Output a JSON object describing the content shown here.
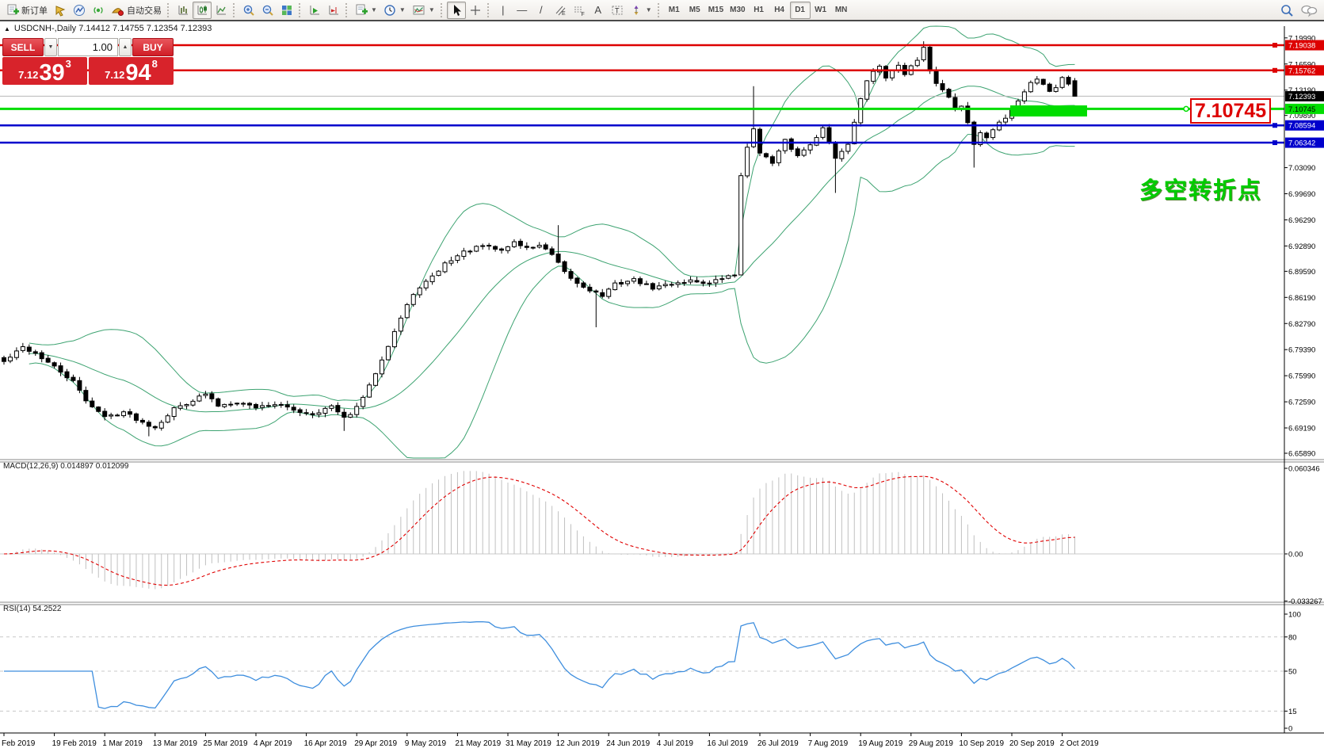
{
  "toolbar": {
    "new_order_label": "新订单",
    "auto_trading_label": "自动交易",
    "timeframes": [
      "M1",
      "M5",
      "M15",
      "M30",
      "H1",
      "H4",
      "D1",
      "W1",
      "MN"
    ],
    "active_timeframe": "D1",
    "icons": [
      "new-order",
      "pointer",
      "market-watch",
      "signal",
      "auto-trading",
      "bar-chart",
      "candlestick-chart",
      "line-chart",
      "zoom-in",
      "zoom-out",
      "tile-windows",
      "auto-scroll",
      "chart-shift",
      "profiles",
      "timeframe-clock",
      "indicators",
      "cursor",
      "crosshair",
      "vertical-line",
      "horizontal-line",
      "trendline",
      "channel",
      "fibonacci",
      "text",
      "text-label",
      "arrows",
      "search",
      "chat"
    ]
  },
  "trade_panel": {
    "sell_label": "SELL",
    "buy_label": "BUY",
    "volume": "1.00",
    "sell_price_main": "7.12",
    "sell_price_big": "39",
    "sell_price_sup": "3",
    "buy_price_main": "7.12",
    "buy_price_big": "94",
    "buy_price_sup": "8",
    "accent_color": "#d8232b"
  },
  "chart_data": {
    "type": "candlestick",
    "symbol_header": "USDCNH-,Daily  7.14412 7.14755 7.12354 7.12393",
    "collapse_marker": "▲",
    "price_axis": {
      "min": 6.6527,
      "max": 7.2152,
      "ticks": [
        "7.19990",
        "7.16590",
        "7.13190",
        "7.09890",
        "7.03090",
        "6.99690",
        "6.96290",
        "6.92890",
        "6.89590",
        "6.86190",
        "6.82790",
        "6.79390",
        "6.75990",
        "6.72590",
        "6.69190",
        "6.65890"
      ]
    },
    "x_labels": [
      "Feb 2019",
      "19 Feb 2019",
      "1 Mar 2019",
      "13 Mar 2019",
      "25 Mar 2019",
      "4 Apr 2019",
      "16 Apr 2019",
      "29 Apr 2019",
      "9 May 2019",
      "21 May 2019",
      "31 May 2019",
      "12 Jun 2019",
      "24 Jun 2019",
      "4 Jul 2019",
      "16 Jul 2019",
      "26 Jul 2019",
      "7 Aug 2019",
      "19 Aug 2019",
      "29 Aug 2019",
      "10 Sep 2019",
      "20 Sep 2019",
      "2 Oct 2019"
    ],
    "candles_per_label": 8,
    "close_anchors": [
      [
        0,
        6.778
      ],
      [
        3,
        6.797
      ],
      [
        5,
        6.789
      ],
      [
        8,
        6.771
      ],
      [
        11,
        6.752
      ],
      [
        13,
        6.728
      ],
      [
        16,
        6.706
      ],
      [
        19,
        6.713
      ],
      [
        22,
        6.699
      ],
      [
        24,
        6.693
      ],
      [
        27,
        6.717
      ],
      [
        30,
        6.728
      ],
      [
        32,
        6.736
      ],
      [
        34,
        6.721
      ],
      [
        37,
        6.726
      ],
      [
        40,
        6.719
      ],
      [
        43,
        6.723
      ],
      [
        46,
        6.715
      ],
      [
        49,
        6.71
      ],
      [
        52,
        6.72
      ],
      [
        54,
        6.704
      ],
      [
        56,
        6.718
      ],
      [
        58,
        6.746
      ],
      [
        60,
        6.782
      ],
      [
        62,
        6.818
      ],
      [
        64,
        6.852
      ],
      [
        66,
        6.876
      ],
      [
        68,
        6.888
      ],
      [
        70,
        6.906
      ],
      [
        73,
        6.921
      ],
      [
        76,
        6.929
      ],
      [
        79,
        6.923
      ],
      [
        81,
        6.934
      ],
      [
        83,
        6.926
      ],
      [
        85,
        6.93
      ],
      [
        87,
        6.917
      ],
      [
        89,
        6.894
      ],
      [
        91,
        6.88
      ],
      [
        93,
        6.872
      ],
      [
        95,
        6.864
      ],
      [
        97,
        6.879
      ],
      [
        100,
        6.885
      ],
      [
        103,
        6.874
      ],
      [
        106,
        6.88
      ],
      [
        109,
        6.884
      ],
      [
        112,
        6.88
      ],
      [
        114,
        6.887
      ],
      [
        116,
        6.891
      ],
      [
        117,
        7.022
      ],
      [
        118,
        7.056
      ],
      [
        119,
        7.082
      ],
      [
        120,
        7.052
      ],
      [
        122,
        7.036
      ],
      [
        124,
        7.066
      ],
      [
        126,
        7.046
      ],
      [
        128,
        7.062
      ],
      [
        130,
        7.082
      ],
      [
        132,
        7.044
      ],
      [
        134,
        7.062
      ],
      [
        135,
        7.092
      ],
      [
        136,
        7.122
      ],
      [
        137,
        7.142
      ],
      [
        138,
        7.156
      ],
      [
        139,
        7.161
      ],
      [
        140,
        7.149
      ],
      [
        141,
        7.159
      ],
      [
        142,
        7.164
      ],
      [
        143,
        7.153
      ],
      [
        144,
        7.164
      ],
      [
        145,
        7.171
      ],
      [
        146,
        7.188
      ],
      [
        147,
        7.156
      ],
      [
        148,
        7.141
      ],
      [
        149,
        7.133
      ],
      [
        150,
        7.121
      ],
      [
        151,
        7.108
      ],
      [
        152,
        7.111
      ],
      [
        153,
        7.089
      ],
      [
        154,
        7.061
      ],
      [
        155,
        7.076
      ],
      [
        156,
        7.071
      ],
      [
        157,
        7.081
      ],
      [
        158,
        7.091
      ],
      [
        159,
        7.096
      ],
      [
        160,
        7.106
      ],
      [
        161,
        7.119
      ],
      [
        162,
        7.131
      ],
      [
        163,
        7.141
      ],
      [
        164,
        7.147
      ],
      [
        165,
        7.141
      ],
      [
        166,
        7.131
      ],
      [
        167,
        7.137
      ],
      [
        168,
        7.148
      ],
      [
        169,
        7.141
      ],
      [
        170,
        7.12393
      ]
    ],
    "wick_overrides": [
      [
        23,
        "low",
        6.681
      ],
      [
        54,
        "low",
        6.688
      ],
      [
        88,
        "high",
        6.956
      ],
      [
        94,
        "low",
        6.823
      ],
      [
        117,
        "low",
        6.9
      ],
      [
        119,
        "high",
        7.137
      ],
      [
        132,
        "low",
        6.998
      ],
      [
        146,
        "high",
        7.1955
      ],
      [
        154,
        "low",
        7.031
      ]
    ],
    "last_candle": {
      "open": 7.14412,
      "high": 7.14755,
      "low": 7.12354,
      "close": 7.12393
    },
    "bollinger": {
      "period": 20,
      "deviation": 2,
      "color": "#3da371"
    },
    "candle_colors": {
      "bull_fill": "#ffffff",
      "bear_fill": "#000000",
      "outline": "#000000"
    },
    "hlines": [
      {
        "price": 7.19038,
        "label": "7.19038",
        "color": "#dd0000",
        "width": 2.5,
        "badge_text": "#ffffff"
      },
      {
        "price": 7.15762,
        "label": "7.15762",
        "color": "#dd0000",
        "width": 2.5,
        "badge_text": "#ffffff"
      },
      {
        "price": 7.12393,
        "label": "7.12393",
        "color": "#b8b8b8",
        "width": 1,
        "badge_fill": "#000000",
        "badge_text": "#ffffff",
        "type": "current"
      },
      {
        "price": 7.10745,
        "label": "7.10745",
        "color": "#00dd00",
        "width": 3,
        "badge_text": "#000000",
        "type": "key"
      },
      {
        "price": 7.08594,
        "label": "7.08594",
        "color": "#0000cc",
        "width": 2.5,
        "badge_text": "#ffffff"
      },
      {
        "price": 7.06342,
        "label": "7.06342",
        "color": "#0000cc",
        "width": 2.5,
        "badge_text": "#ffffff"
      }
    ],
    "annotations": {
      "price_callout": {
        "text": "7.10745",
        "color": "#dd0000"
      },
      "highlight_rect": {
        "color": "#00dd00"
      },
      "cn_note": {
        "text": "多空转折点",
        "color": "#00cc00"
      }
    },
    "macd": {
      "label": "MACD(12,26,9) 0.014897 0.012099",
      "fast": 12,
      "slow": 26,
      "signal": 9,
      "value_main": "0.014897",
      "value_signal": "0.012099",
      "axis_ticks": [
        "0.060346",
        "0.00",
        "-0.033267"
      ],
      "axis_max": 0.060346,
      "axis_min": -0.033267,
      "hist_color": "#c0c0c0",
      "signal_color": "#e00000"
    },
    "rsi": {
      "label": "RSI(14) 54.2522",
      "period": 14,
      "value": "54.2522",
      "levels": [
        80,
        50,
        15
      ],
      "axis_ticks": [
        "100",
        "80",
        "50",
        "15",
        "0"
      ],
      "color": "#3e8ede"
    }
  }
}
